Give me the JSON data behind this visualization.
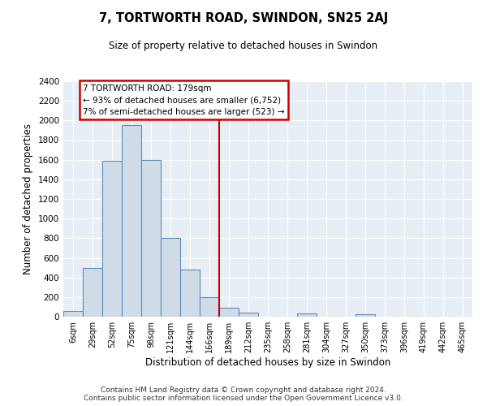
{
  "title": "7, TORTWORTH ROAD, SWINDON, SN25 2AJ",
  "subtitle": "Size of property relative to detached houses in Swindon",
  "xlabel": "Distribution of detached houses by size in Swindon",
  "ylabel": "Number of detached properties",
  "bar_labels": [
    "6sqm",
    "29sqm",
    "52sqm",
    "75sqm",
    "98sqm",
    "121sqm",
    "144sqm",
    "166sqm",
    "189sqm",
    "212sqm",
    "235sqm",
    "258sqm",
    "281sqm",
    "304sqm",
    "327sqm",
    "350sqm",
    "373sqm",
    "396sqm",
    "419sqm",
    "442sqm",
    "465sqm"
  ],
  "bar_values": [
    55,
    500,
    1590,
    1950,
    1600,
    800,
    480,
    195,
    95,
    40,
    0,
    0,
    30,
    0,
    0,
    25,
    0,
    0,
    0,
    0,
    0
  ],
  "bar_color": "#cfdce8",
  "bar_edge_color": "#5b8db8",
  "vline_x": 8.0,
  "vline_color": "#cc0000",
  "annotation_text": "7 TORTWORTH ROAD: 179sqm\n← 93% of detached houses are smaller (6,752)\n7% of semi-detached houses are larger (523) →",
  "annotation_box_color": "white",
  "annotation_box_edge_color": "#cc0000",
  "ylim": [
    0,
    2400
  ],
  "yticks": [
    0,
    200,
    400,
    600,
    800,
    1000,
    1200,
    1400,
    1600,
    1800,
    2000,
    2200,
    2400
  ],
  "footer_line1": "Contains HM Land Registry data © Crown copyright and database right 2024.",
  "footer_line2": "Contains public sector information licensed under the Open Government Licence v3.0.",
  "background_color": "#ffffff",
  "plot_background_color": "#e8eef5"
}
